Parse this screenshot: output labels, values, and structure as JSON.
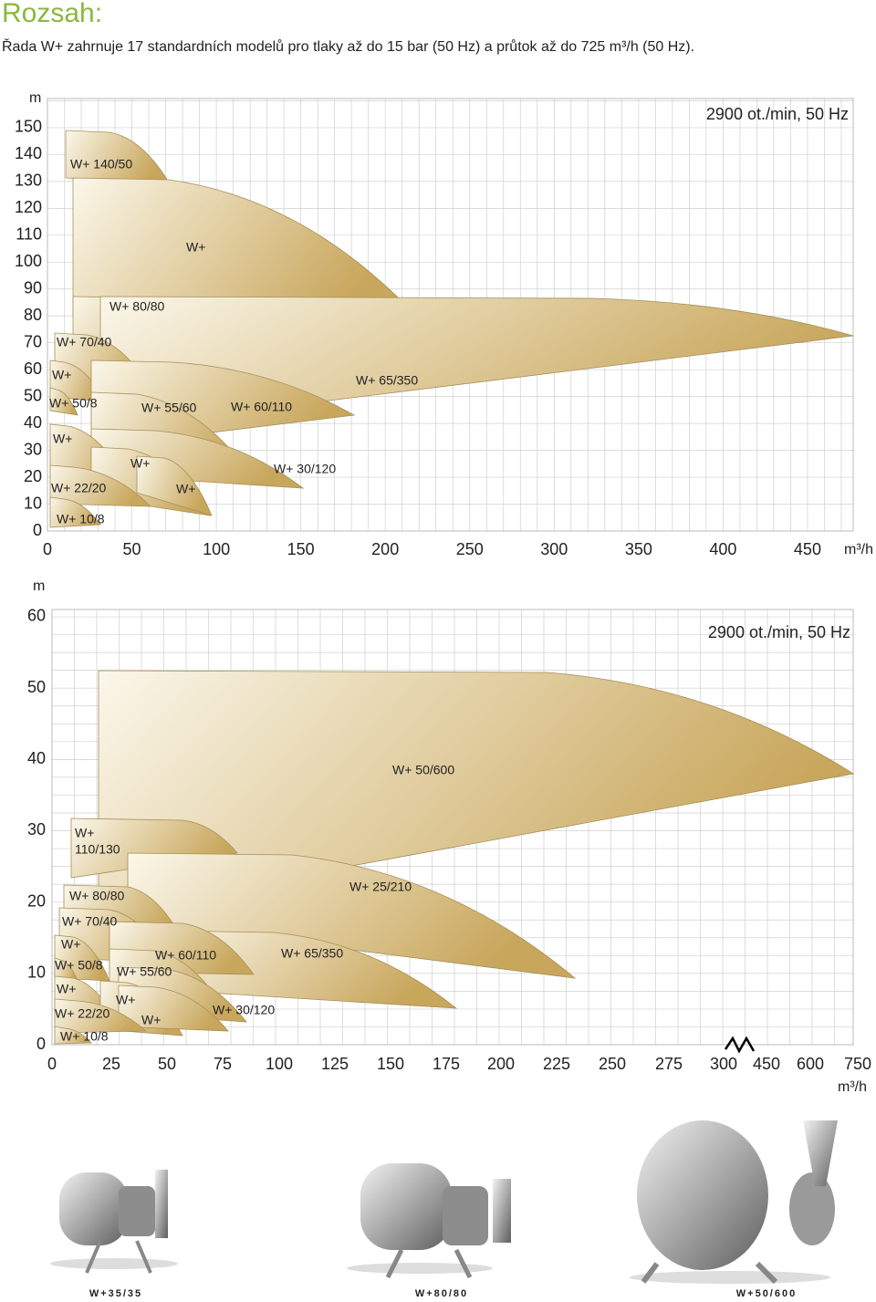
{
  "header": {
    "title": "Rozsah:",
    "text": "Řada W+ zahrnuje 17 standardních modelů pro tlaky až do 15 bar (50 Hz) a průtok až do 725 m³/h (50 Hz)."
  },
  "charts": [
    {
      "y_unit": "m",
      "x_unit": "m³/h",
      "note": "2900 ot./min, 50 Hz",
      "yticks": [
        150,
        140,
        130,
        120,
        110,
        100,
        90,
        80,
        70,
        60,
        50,
        40,
        30,
        20,
        10,
        0
      ],
      "xticks": [
        0,
        50,
        100,
        150,
        200,
        250,
        300,
        350,
        400,
        450
      ],
      "labels": [
        "W+ 140/50",
        "W+",
        "W+ 80/80",
        "W+ 70/40",
        "W+",
        "W+ 65/350",
        "W+ 50/8",
        "W+ 55/60",
        "W+ 60/110",
        "W+",
        "W+",
        "W+ 30/120",
        "W+ 22/20",
        "W+",
        "W+ 10/8"
      ]
    },
    {
      "y_unit": "m",
      "x_unit": "m³/h",
      "note": "2900 ot./min, 50 Hz",
      "yticks": [
        60,
        50,
        40,
        30,
        20,
        10,
        0
      ],
      "xticks": [
        0,
        25,
        50,
        75,
        100,
        125,
        150,
        175,
        200,
        225,
        250,
        275,
        300,
        450,
        600,
        750
      ],
      "labels": [
        "W+ 50/600",
        [
          "W+",
          "110/130"
        ],
        "W+ 25/210",
        "W+ 80/80",
        "W+ 70/40",
        "W+",
        "W+ 60/110",
        "W+ 65/350",
        "W+ 50/8",
        "W+ 55/60",
        "W+",
        "W+",
        "W+ 30/120",
        "W+ 22/20",
        "W+",
        "W+ 10/8"
      ]
    }
  ],
  "products": [
    "W+35/35",
    "W+80/80",
    "W+50/600"
  ]
}
